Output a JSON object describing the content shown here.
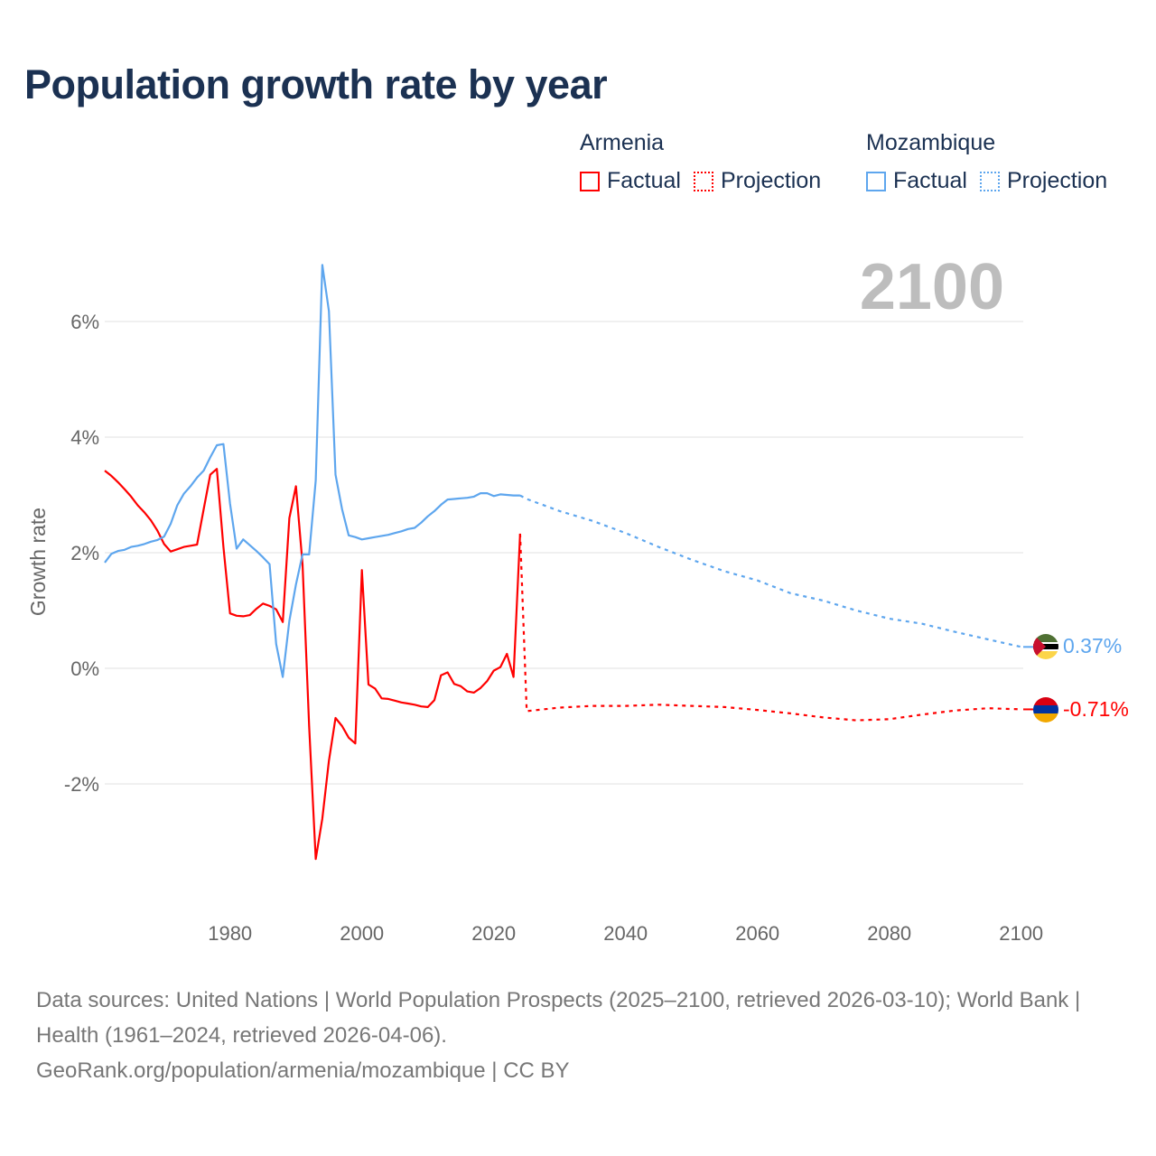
{
  "title": "Population growth rate by year",
  "legend": {
    "groups": [
      {
        "name": "Armenia",
        "color": "#ff0000",
        "factual": "Factual",
        "projection": "Projection"
      },
      {
        "name": "Mozambique",
        "color": "#5ea6ee",
        "factual": "Factual",
        "projection": "Projection"
      }
    ]
  },
  "footer": {
    "sources": "Data sources: United Nations | World Population Prospects (2025–2100, retrieved 2026-03-10); World Bank | Health (1961–2024, retrieved 2026-04-06).",
    "link": "GeoRank.org/population/armenia/mozambique | CC BY"
  },
  "chart_data": {
    "type": "line",
    "title": "Population growth rate by year",
    "ylabel": "Growth rate",
    "xlabel": "",
    "year_label": "2100",
    "xlim": [
      1961,
      2100
    ],
    "ylim": [
      -4,
      7.2
    ],
    "xticks": [
      1980,
      2000,
      2020,
      2040,
      2060,
      2080,
      2100
    ],
    "xtick_labels": [
      "1980",
      "2000",
      "2020",
      "2040",
      "2060",
      "2080",
      "2100"
    ],
    "yticks": [
      6,
      4,
      2,
      0,
      -2
    ],
    "ytick_labels": [
      "6%",
      "4%",
      "2%",
      "0%",
      "-2%"
    ],
    "grid": true,
    "legend_position": "top-right",
    "series": [
      {
        "name": "Armenia",
        "kind": "factual",
        "color": "#ff0000",
        "x": [
          1961,
          1962,
          1963,
          1964,
          1965,
          1966,
          1967,
          1968,
          1969,
          1970,
          1971,
          1972,
          1973,
          1974,
          1975,
          1976,
          1977,
          1978,
          1979,
          1980,
          1981,
          1982,
          1983,
          1984,
          1985,
          1986,
          1987,
          1988,
          1989,
          1990,
          1991,
          1992,
          1993,
          1994,
          1995,
          1996,
          1997,
          1998,
          1999,
          2000,
          2001,
          2002,
          2003,
          2004,
          2005,
          2006,
          2007,
          2008,
          2009,
          2010,
          2011,
          2012,
          2013,
          2014,
          2015,
          2016,
          2017,
          2018,
          2019,
          2020,
          2021,
          2022,
          2023,
          2024
        ],
        "values": [
          3.42,
          3.33,
          3.22,
          3.1,
          2.97,
          2.82,
          2.7,
          2.56,
          2.38,
          2.15,
          2.02,
          2.06,
          2.1,
          2.12,
          2.14,
          2.75,
          3.35,
          3.45,
          2.1,
          0.95,
          0.91,
          0.9,
          0.92,
          1.03,
          1.12,
          1.08,
          1.02,
          0.8,
          2.6,
          3.15,
          1.8,
          -1.0,
          -3.3,
          -2.6,
          -1.6,
          -0.86,
          -1.0,
          -1.2,
          -1.3,
          1.7,
          -0.28,
          -0.35,
          -0.52,
          -0.53,
          -0.56,
          -0.59,
          -0.61,
          -0.63,
          -0.66,
          -0.67,
          -0.55,
          -0.12,
          -0.07,
          -0.27,
          -0.31,
          -0.4,
          -0.42,
          -0.34,
          -0.22,
          -0.04,
          0.02,
          0.25,
          -0.15,
          2.33
        ]
      },
      {
        "name": "Armenia",
        "kind": "projection",
        "color": "#ff0000",
        "x": [
          2024,
          2025,
          2030,
          2035,
          2040,
          2045,
          2050,
          2055,
          2060,
          2065,
          2070,
          2075,
          2080,
          2085,
          2090,
          2095,
          2100
        ],
        "values": [
          2.33,
          -0.74,
          -0.68,
          -0.65,
          -0.65,
          -0.63,
          -0.65,
          -0.67,
          -0.72,
          -0.78,
          -0.85,
          -0.9,
          -0.88,
          -0.8,
          -0.73,
          -0.69,
          -0.71
        ]
      },
      {
        "name": "Mozambique",
        "kind": "factual",
        "color": "#5ea6ee",
        "x": [
          1961,
          1962,
          1963,
          1964,
          1965,
          1966,
          1967,
          1968,
          1969,
          1970,
          1971,
          1972,
          1973,
          1974,
          1975,
          1976,
          1977,
          1978,
          1979,
          1980,
          1981,
          1982,
          1983,
          1984,
          1985,
          1986,
          1987,
          1988,
          1989,
          1990,
          1991,
          1992,
          1993,
          1994,
          1995,
          1996,
          1997,
          1998,
          1999,
          2000,
          2001,
          2002,
          2003,
          2004,
          2005,
          2006,
          2007,
          2008,
          2009,
          2010,
          2011,
          2012,
          2013,
          2014,
          2015,
          2016,
          2017,
          2018,
          2019,
          2020,
          2021,
          2022,
          2023,
          2024
        ],
        "values": [
          1.83,
          1.98,
          2.03,
          2.05,
          2.1,
          2.12,
          2.15,
          2.19,
          2.22,
          2.28,
          2.5,
          2.82,
          3.02,
          3.15,
          3.3,
          3.42,
          3.65,
          3.86,
          3.88,
          2.85,
          2.07,
          2.23,
          2.13,
          2.03,
          1.92,
          1.8,
          0.42,
          -0.15,
          0.82,
          1.45,
          1.97,
          1.97,
          3.25,
          6.98,
          6.18,
          3.35,
          2.75,
          2.3,
          2.27,
          2.23,
          2.25,
          2.27,
          2.29,
          2.31,
          2.34,
          2.37,
          2.41,
          2.43,
          2.52,
          2.63,
          2.72,
          2.83,
          2.92,
          2.93,
          2.94,
          2.95,
          2.97,
          3.03,
          3.03,
          2.98,
          3.01,
          3.0,
          2.99,
          2.99
        ]
      },
      {
        "name": "Mozambique",
        "kind": "projection",
        "color": "#5ea6ee",
        "x": [
          2024,
          2025,
          2030,
          2035,
          2040,
          2045,
          2050,
          2055,
          2060,
          2065,
          2070,
          2075,
          2080,
          2085,
          2090,
          2095,
          2100
        ],
        "values": [
          2.99,
          2.93,
          2.72,
          2.55,
          2.34,
          2.1,
          1.88,
          1.68,
          1.52,
          1.3,
          1.17,
          1.0,
          0.86,
          0.77,
          0.63,
          0.5,
          0.37
        ]
      }
    ],
    "end_labels": [
      {
        "name": "Mozambique",
        "value": 0.37,
        "label": "0.37%",
        "color": "#5ea6ee"
      },
      {
        "name": "Armenia",
        "value": -0.71,
        "label": "-0.71%",
        "color": "#ff0000"
      }
    ]
  }
}
